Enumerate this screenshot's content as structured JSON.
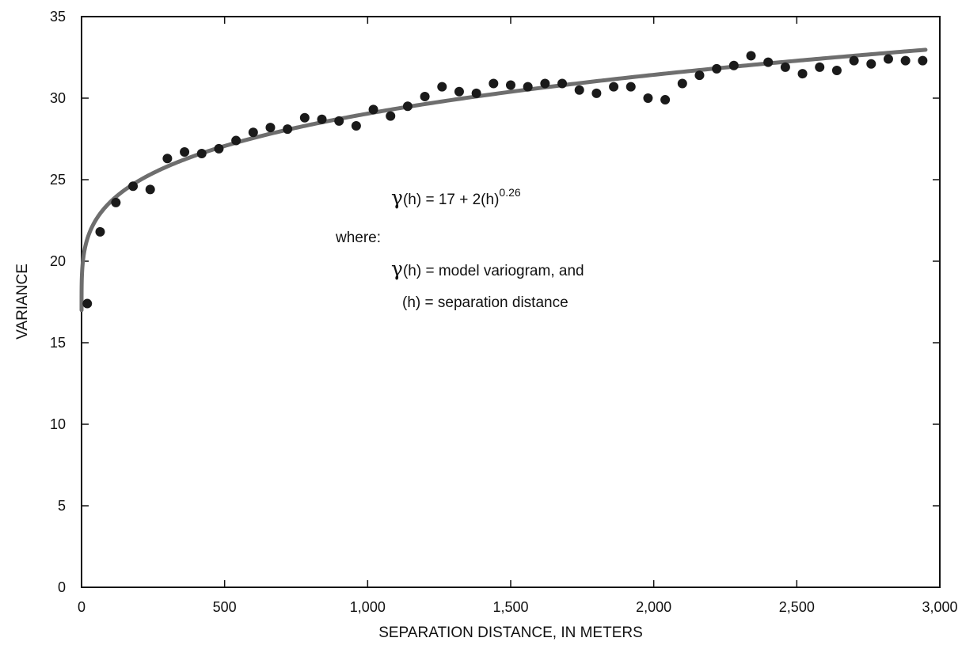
{
  "chart_data": {
    "type": "scatter",
    "xlabel": "SEPARATION DISTANCE, IN METERS",
    "ylabel": "VARIANCE",
    "xlim": [
      0,
      3000
    ],
    "ylim": [
      0,
      35
    ],
    "xticks": [
      0,
      500,
      1000,
      1500,
      2000,
      2500,
      3000
    ],
    "xtick_labels": [
      "0",
      "500",
      "1,000",
      "1,500",
      "2,000",
      "2,500",
      "3,000"
    ],
    "yticks": [
      0,
      5,
      10,
      15,
      20,
      25,
      30,
      35
    ],
    "ytick_labels": [
      "0",
      "5",
      "10",
      "15",
      "20",
      "25",
      "30",
      "35"
    ],
    "grid": false,
    "colors": {
      "points": "#1a1a1a",
      "model_line": "#6e6e6e",
      "axes": "#111111"
    },
    "series": [
      {
        "kind": "points",
        "x": [
          20,
          65,
          120,
          180,
          240,
          300,
          360,
          420,
          480,
          540,
          600,
          660,
          720,
          780,
          840,
          900,
          960,
          1020,
          1080,
          1140,
          1200,
          1260,
          1320,
          1380,
          1440,
          1500,
          1560,
          1620,
          1680,
          1740,
          1800,
          1860,
          1920,
          1980,
          2040,
          2100,
          2160,
          2220,
          2280,
          2340,
          2400,
          2460,
          2520,
          2580,
          2640,
          2700,
          2760,
          2820,
          2880,
          2940
        ],
        "y": [
          17.4,
          21.8,
          23.6,
          24.6,
          24.4,
          26.3,
          26.7,
          26.6,
          26.9,
          27.4,
          27.9,
          28.2,
          28.1,
          28.8,
          28.7,
          28.6,
          28.3,
          29.3,
          28.9,
          29.5,
          30.1,
          30.7,
          30.4,
          30.3,
          30.9,
          30.8,
          30.7,
          30.9,
          30.9,
          30.5,
          30.3,
          30.7,
          30.7,
          30.0,
          29.9,
          30.9,
          31.4,
          31.8,
          32.0,
          32.6,
          32.2,
          31.9,
          31.5,
          31.9,
          31.7,
          32.3,
          32.1,
          32.4,
          32.3,
          32.3
        ]
      },
      {
        "kind": "model",
        "equation": {
          "constant": 17,
          "coefficient": 2,
          "exponent": 0.26
        },
        "x_range": [
          0,
          2950
        ]
      }
    ],
    "annotations": {
      "gamma_symbol": "γ",
      "eq_text": "(h) = 17 + 2(h)",
      "eq_exponent": "0.26",
      "where_label": "where:",
      "def1_text": "(h) = model variogram, and",
      "def2_text": "(h) = separation distance"
    }
  }
}
